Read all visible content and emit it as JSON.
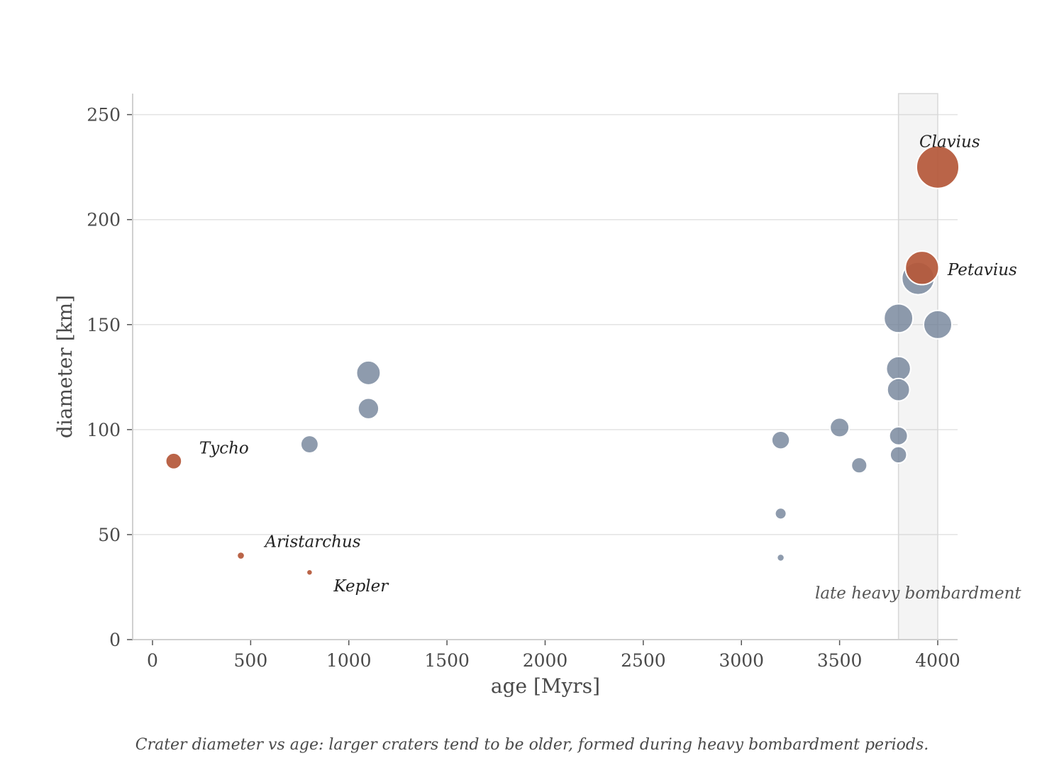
{
  "chart_data": {
    "type": "scatter",
    "title": "",
    "xlabel": "age  [Myrs]",
    "ylabel": "diameter  [km]",
    "xlim": [
      -100,
      4100
    ],
    "ylim": [
      0,
      260
    ],
    "xticks": [
      0,
      500,
      1000,
      1500,
      2000,
      2500,
      3000,
      3500,
      4000
    ],
    "yticks": [
      0,
      50,
      100,
      150,
      200,
      250
    ],
    "grid": "horizontal",
    "size_encoding": "diameter",
    "highlight_band": {
      "x_start": 3800,
      "x_end": 4000,
      "label": "late heavy bombardment"
    },
    "series": [
      {
        "color": "#6e7f96",
        "points": [
          {
            "x": 800,
            "y": 93
          },
          {
            "x": 1100,
            "y": 127
          },
          {
            "x": 1100,
            "y": 110
          },
          {
            "x": 3200,
            "y": 95
          },
          {
            "x": 3200,
            "y": 60
          },
          {
            "x": 3200,
            "y": 39
          },
          {
            "x": 3500,
            "y": 101
          },
          {
            "x": 3600,
            "y": 83
          },
          {
            "x": 3800,
            "y": 153
          },
          {
            "x": 3800,
            "y": 129
          },
          {
            "x": 3800,
            "y": 119
          },
          {
            "x": 3800,
            "y": 97
          },
          {
            "x": 3800,
            "y": 88
          },
          {
            "x": 3900,
            "y": 172
          },
          {
            "x": 4000,
            "y": 150
          }
        ]
      },
      {
        "color": "#b5583a",
        "points": [
          {
            "x": 108,
            "y": 85,
            "label": "Tycho"
          },
          {
            "x": 450,
            "y": 40,
            "label": "Aristarchus"
          },
          {
            "x": 800,
            "y": 32,
            "label": "Kepler"
          },
          {
            "x": 3920,
            "y": 177,
            "label": "Petavius"
          },
          {
            "x": 4000,
            "y": 225,
            "label": "Clavius"
          }
        ]
      }
    ],
    "caption": "Crater diameter vs age: larger craters tend to be older, formed during heavy bombardment periods."
  }
}
